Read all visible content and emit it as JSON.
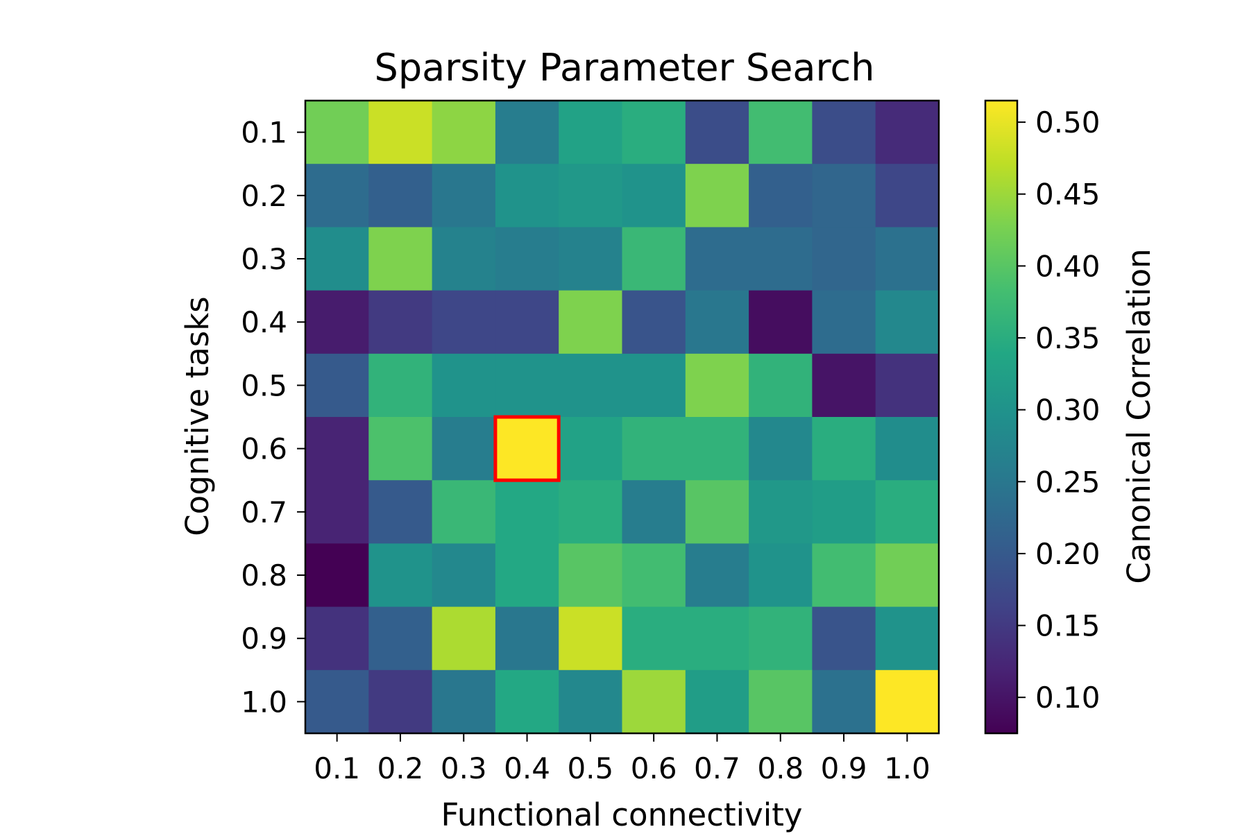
{
  "chart_data": {
    "type": "heatmap",
    "title": "Sparsity Parameter Search",
    "xlabel": "Functional connectivity",
    "ylabel": "Cognitive tasks",
    "x_categories": [
      "0.1",
      "0.2",
      "0.3",
      "0.4",
      "0.5",
      "0.6",
      "0.7",
      "0.8",
      "0.9",
      "1.0"
    ],
    "y_categories": [
      "0.1",
      "0.2",
      "0.3",
      "0.4",
      "0.5",
      "0.6",
      "0.7",
      "0.8",
      "0.9",
      "1.0"
    ],
    "values": [
      [
        0.42,
        0.48,
        0.44,
        0.26,
        0.33,
        0.35,
        0.18,
        0.38,
        0.18,
        0.13
      ],
      [
        0.23,
        0.21,
        0.25,
        0.3,
        0.31,
        0.3,
        0.43,
        0.21,
        0.22,
        0.17
      ],
      [
        0.29,
        0.43,
        0.27,
        0.26,
        0.27,
        0.37,
        0.23,
        0.23,
        0.22,
        0.24
      ],
      [
        0.11,
        0.15,
        0.17,
        0.17,
        0.43,
        0.19,
        0.25,
        0.09,
        0.23,
        0.28
      ],
      [
        0.2,
        0.36,
        0.3,
        0.3,
        0.3,
        0.3,
        0.43,
        0.36,
        0.1,
        0.14
      ],
      [
        0.12,
        0.39,
        0.26,
        0.52,
        0.33,
        0.36,
        0.36,
        0.28,
        0.35,
        0.29
      ],
      [
        0.12,
        0.2,
        0.37,
        0.34,
        0.35,
        0.26,
        0.4,
        0.31,
        0.32,
        0.35
      ],
      [
        0.07,
        0.3,
        0.28,
        0.34,
        0.4,
        0.38,
        0.26,
        0.3,
        0.38,
        0.42
      ],
      [
        0.14,
        0.21,
        0.46,
        0.25,
        0.48,
        0.35,
        0.35,
        0.36,
        0.19,
        0.3
      ],
      [
        0.2,
        0.15,
        0.25,
        0.34,
        0.28,
        0.45,
        0.32,
        0.4,
        0.24,
        0.52
      ]
    ],
    "highlight": {
      "row": 5,
      "col": 3,
      "color": "#ff0000"
    },
    "colorbar": {
      "label": "Canonical Correlation",
      "range": [
        0.075,
        0.515
      ],
      "ticks": [
        "0.10",
        "0.15",
        "0.20",
        "0.25",
        "0.30",
        "0.35",
        "0.40",
        "0.45",
        "0.50"
      ],
      "colormap": "viridis"
    }
  }
}
